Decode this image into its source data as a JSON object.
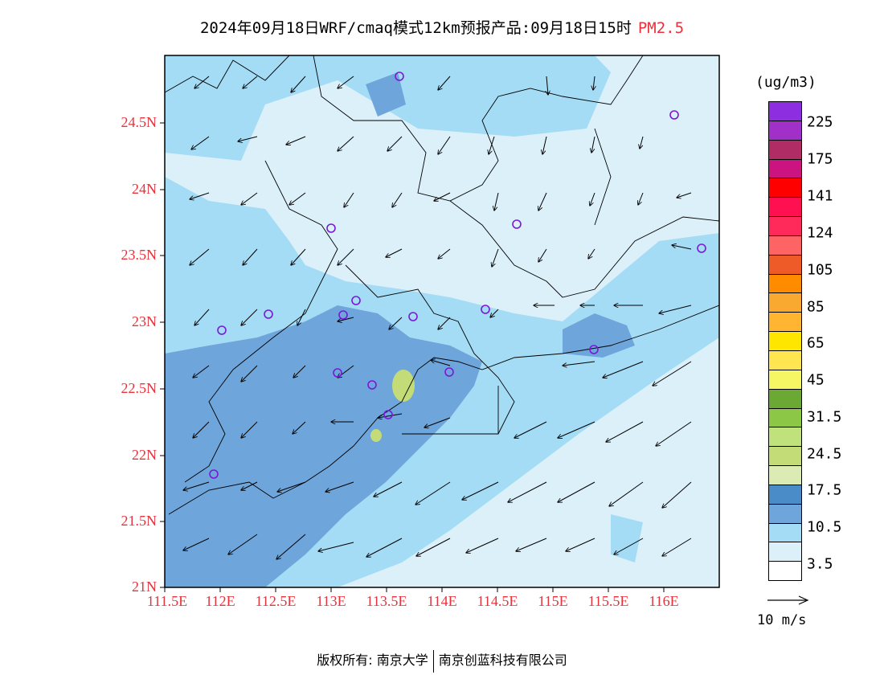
{
  "header": {
    "title": "2024年09月18日WRF/cmaq模式12km预报产品:09月18日15时",
    "pollutant": "PM2.5"
  },
  "axes": {
    "lat_labels": [
      "24.5N",
      "24N",
      "23.5N",
      "23N",
      "22.5N",
      "22N",
      "21.5N",
      "21N"
    ],
    "lon_labels": [
      "111.5E",
      "112E",
      "112.5E",
      "113E",
      "113.5E",
      "114E",
      "114.5E",
      "115E",
      "115.5E",
      "116E"
    ],
    "lat_range": [
      21,
      25
    ],
    "lon_range": [
      111.5,
      116.5
    ]
  },
  "legend": {
    "unit": "(ug/m3)",
    "colors_top_to_bottom": [
      "#8d2ee0",
      "#a030c8",
      "#b02c64",
      "#cc1480",
      "#ff0000",
      "#ff1050",
      "#ff2a5a",
      "#ff6464",
      "#ee5a28",
      "#ff8c00",
      "#f9a830",
      "#ffb432",
      "#ffe600",
      "#ffe650",
      "#f6f664",
      "#6ca834",
      "#8cc846",
      "#c0e27c",
      "#c3dc78",
      "#dcebb4",
      "#4a8cc8",
      "#6ea5db",
      "#a5dcf5",
      "#dcf0fa",
      "#ffffff"
    ],
    "tick_labels": [
      "225",
      "175",
      "141",
      "124",
      "105",
      "85",
      "65",
      "45",
      "31.5",
      "24.5",
      "17.5",
      "10.5",
      "3.5"
    ]
  },
  "wind_reference": {
    "label": "10 m/s"
  },
  "footer": {
    "copyright": "版权所有: 南京大学",
    "company": "南京创蓝科技有限公司"
  }
}
